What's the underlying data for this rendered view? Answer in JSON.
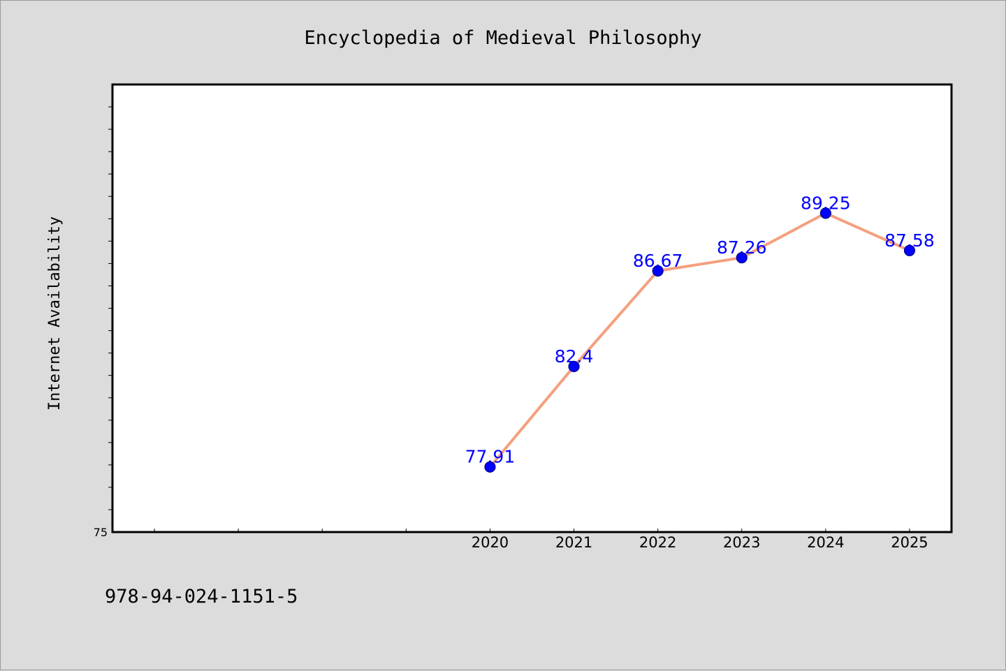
{
  "chart_data": {
    "type": "line",
    "title": "Encyclopedia of Medieval Philosophy",
    "ylabel": "Internet Availability",
    "xlabel": "",
    "x": [
      2020,
      2021,
      2022,
      2023,
      2024,
      2025
    ],
    "x_tick_labels": [
      "2020",
      "2021",
      "2022",
      "2023",
      "2024",
      "2025"
    ],
    "x_range": [
      2015.5,
      2025.5
    ],
    "series": [
      {
        "values": [
          77.91,
          82.4,
          86.67,
          87.26,
          89.25,
          87.58
        ],
        "data_labels": [
          "77.91",
          "82.4",
          "86.67",
          "87.26",
          "89.25",
          "87.58"
        ]
      }
    ],
    "ylim": [
      75,
      95
    ],
    "y_tick_labels": [
      "75"
    ],
    "y_minor_step": 1,
    "grid": false,
    "legend": "none",
    "colors": {
      "line": "#f4a07f",
      "marker": "#0000ff",
      "marker_edge": "#000080",
      "data_label": "#0000ff",
      "background": "#dcdcdc",
      "plot_area": "#ffffff"
    }
  },
  "footer": {
    "isbn": "978-94-024-1151-5"
  }
}
